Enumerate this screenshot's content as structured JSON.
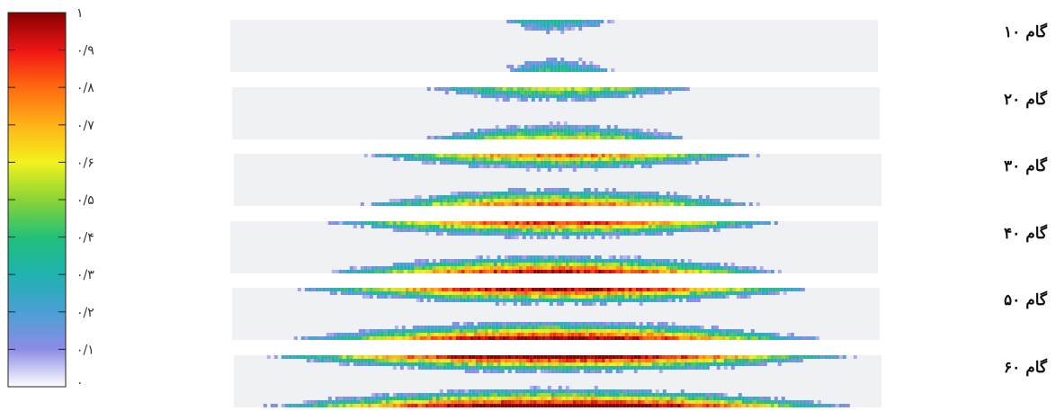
{
  "colorbar": {
    "tick_labels": [
      "۰",
      "۰/۱",
      "۰/۲",
      "۰/۳",
      "۰/۴",
      "۰/۵",
      "۰/۶",
      "۰/۷",
      "۰/۸",
      "۰/۹",
      "۱"
    ],
    "tick_values": [
      0,
      0.1,
      0.2,
      0.3,
      0.4,
      0.5,
      0.6,
      0.7,
      0.8,
      0.9,
      1
    ],
    "colors": [
      "#ffffff",
      "#8c8ce6",
      "#4aa0d4",
      "#1fb2b0",
      "#22c07a",
      "#8ad436",
      "#f2f21c",
      "#ffb21a",
      "#ff6a10",
      "#ee1414",
      "#860000"
    ]
  },
  "panels": [
    {
      "step_label": "گام ۱۰",
      "spread": 0.18,
      "intensity": 0.35
    },
    {
      "step_label": "گام ۲۰",
      "spread": 0.42,
      "intensity": 0.55
    },
    {
      "step_label": "گام ۳۰",
      "spread": 0.62,
      "intensity": 0.75
    },
    {
      "step_label": "گام ۴۰",
      "spread": 0.72,
      "intensity": 0.85
    },
    {
      "step_label": "گام ۵۰",
      "spread": 0.82,
      "intensity": 0.92
    },
    {
      "step_label": "گام ۶۰",
      "spread": 0.92,
      "intensity": 1.0
    }
  ]
}
